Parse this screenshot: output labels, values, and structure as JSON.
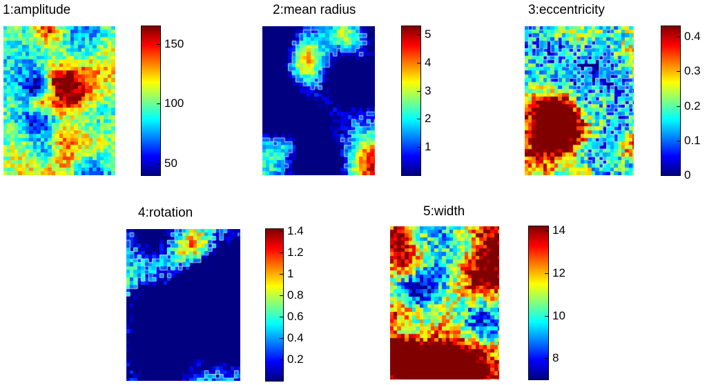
{
  "figure": {
    "background": "#ffffff",
    "colormap": "jet"
  },
  "chart_data": [
    {
      "type": "heatmap",
      "title": "1:amplitude",
      "colorbar_range": [
        40,
        165
      ],
      "colorbar_ticks": [
        {
          "value": 50,
          "label": "50"
        },
        {
          "value": 100,
          "label": "100"
        },
        {
          "value": 150,
          "label": "150"
        }
      ]
    },
    {
      "type": "heatmap",
      "title": "2:mean radius",
      "colorbar_range": [
        0,
        5.3
      ],
      "colorbar_ticks": [
        {
          "value": 1,
          "label": "1"
        },
        {
          "value": 2,
          "label": "2"
        },
        {
          "value": 3,
          "label": "3"
        },
        {
          "value": 4,
          "label": "4"
        },
        {
          "value": 5,
          "label": "5"
        }
      ]
    },
    {
      "type": "heatmap",
      "title": "3:eccentricity",
      "colorbar_range": [
        0,
        0.43
      ],
      "colorbar_ticks": [
        {
          "value": 0,
          "label": "0"
        },
        {
          "value": 0.1,
          "label": "0.1"
        },
        {
          "value": 0.2,
          "label": "0.2"
        },
        {
          "value": 0.3,
          "label": "0.3"
        },
        {
          "value": 0.4,
          "label": "0.4"
        }
      ]
    },
    {
      "type": "heatmap",
      "title": "4:rotation",
      "colorbar_range": [
        0,
        1.42
      ],
      "colorbar_ticks": [
        {
          "value": 0.2,
          "label": "0.2"
        },
        {
          "value": 0.4,
          "label": "0.4"
        },
        {
          "value": 0.6,
          "label": "0.6"
        },
        {
          "value": 0.8,
          "label": "0.8"
        },
        {
          "value": 1.0,
          "label": "1"
        },
        {
          "value": 1.2,
          "label": "1.2"
        },
        {
          "value": 1.4,
          "label": "1.4"
        }
      ]
    },
    {
      "type": "heatmap",
      "title": "5:width",
      "colorbar_range": [
        7,
        14.2
      ],
      "colorbar_ticks": [
        {
          "value": 8,
          "label": "8"
        },
        {
          "value": 10,
          "label": "10"
        },
        {
          "value": 12,
          "label": "12"
        },
        {
          "value": 14,
          "label": "14"
        }
      ]
    }
  ]
}
